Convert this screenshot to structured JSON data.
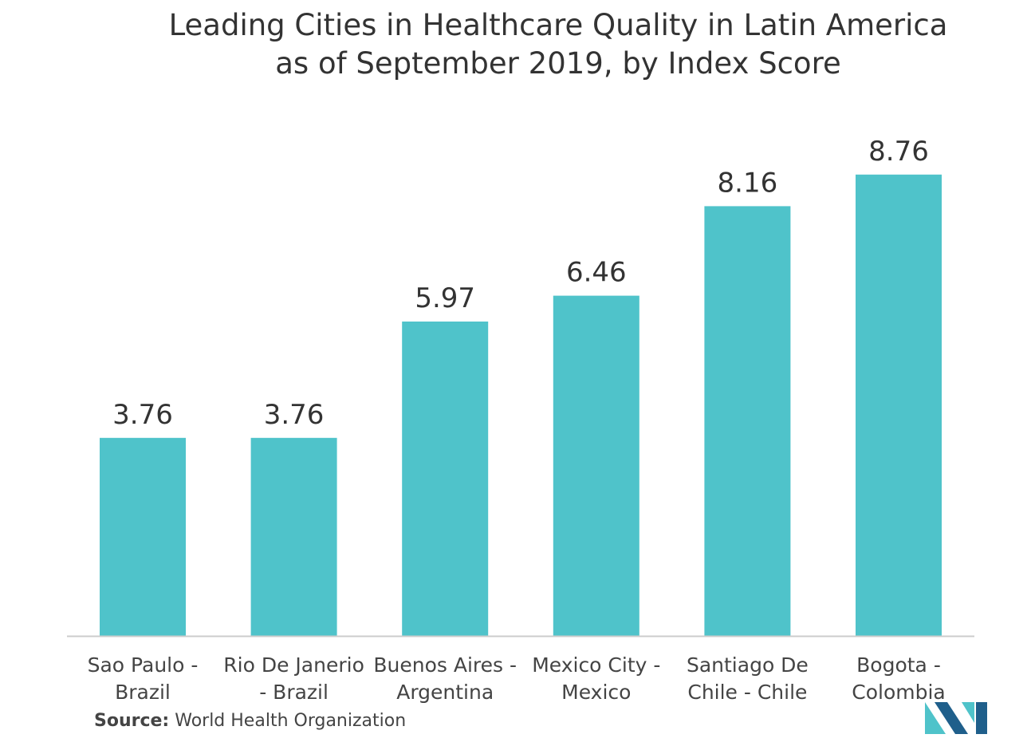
{
  "title_line1": "Leading Cities in Healthcare Quality in Latin America",
  "title_line2": "as of September 2019, by Index Score",
  "source_label": "Source:",
  "source_text": " World Health Organization",
  "colors": {
    "bar": "#4FC3CA",
    "axis": "#cccccc",
    "text": "#333333",
    "logo_dark": "#1f5f8b",
    "logo_light": "#4FC3CA"
  },
  "logo_icon": "market-logo-icon",
  "chart_data": {
    "type": "bar",
    "title": "Leading Cities in Healthcare Quality in Latin America as of September 2019, by Index Score",
    "xlabel": "",
    "ylabel": "",
    "categories": [
      [
        "Sao Paulo -",
        "Brazil"
      ],
      [
        "Rio De Janerio",
        "- Brazil"
      ],
      [
        "Buenos Aires -",
        "Argentina"
      ],
      [
        "Mexico City -",
        "Mexico"
      ],
      [
        "Santiago De",
        "Chile - Chile"
      ],
      [
        "Bogota -",
        "Colombia"
      ]
    ],
    "values": [
      3.76,
      3.76,
      5.97,
      6.46,
      8.16,
      8.76
    ],
    "value_labels": [
      "3.76",
      "3.76",
      "5.97",
      "6.46",
      "8.16",
      "8.76"
    ],
    "ylim": [
      0,
      10
    ],
    "grid": false,
    "legend": "none"
  }
}
